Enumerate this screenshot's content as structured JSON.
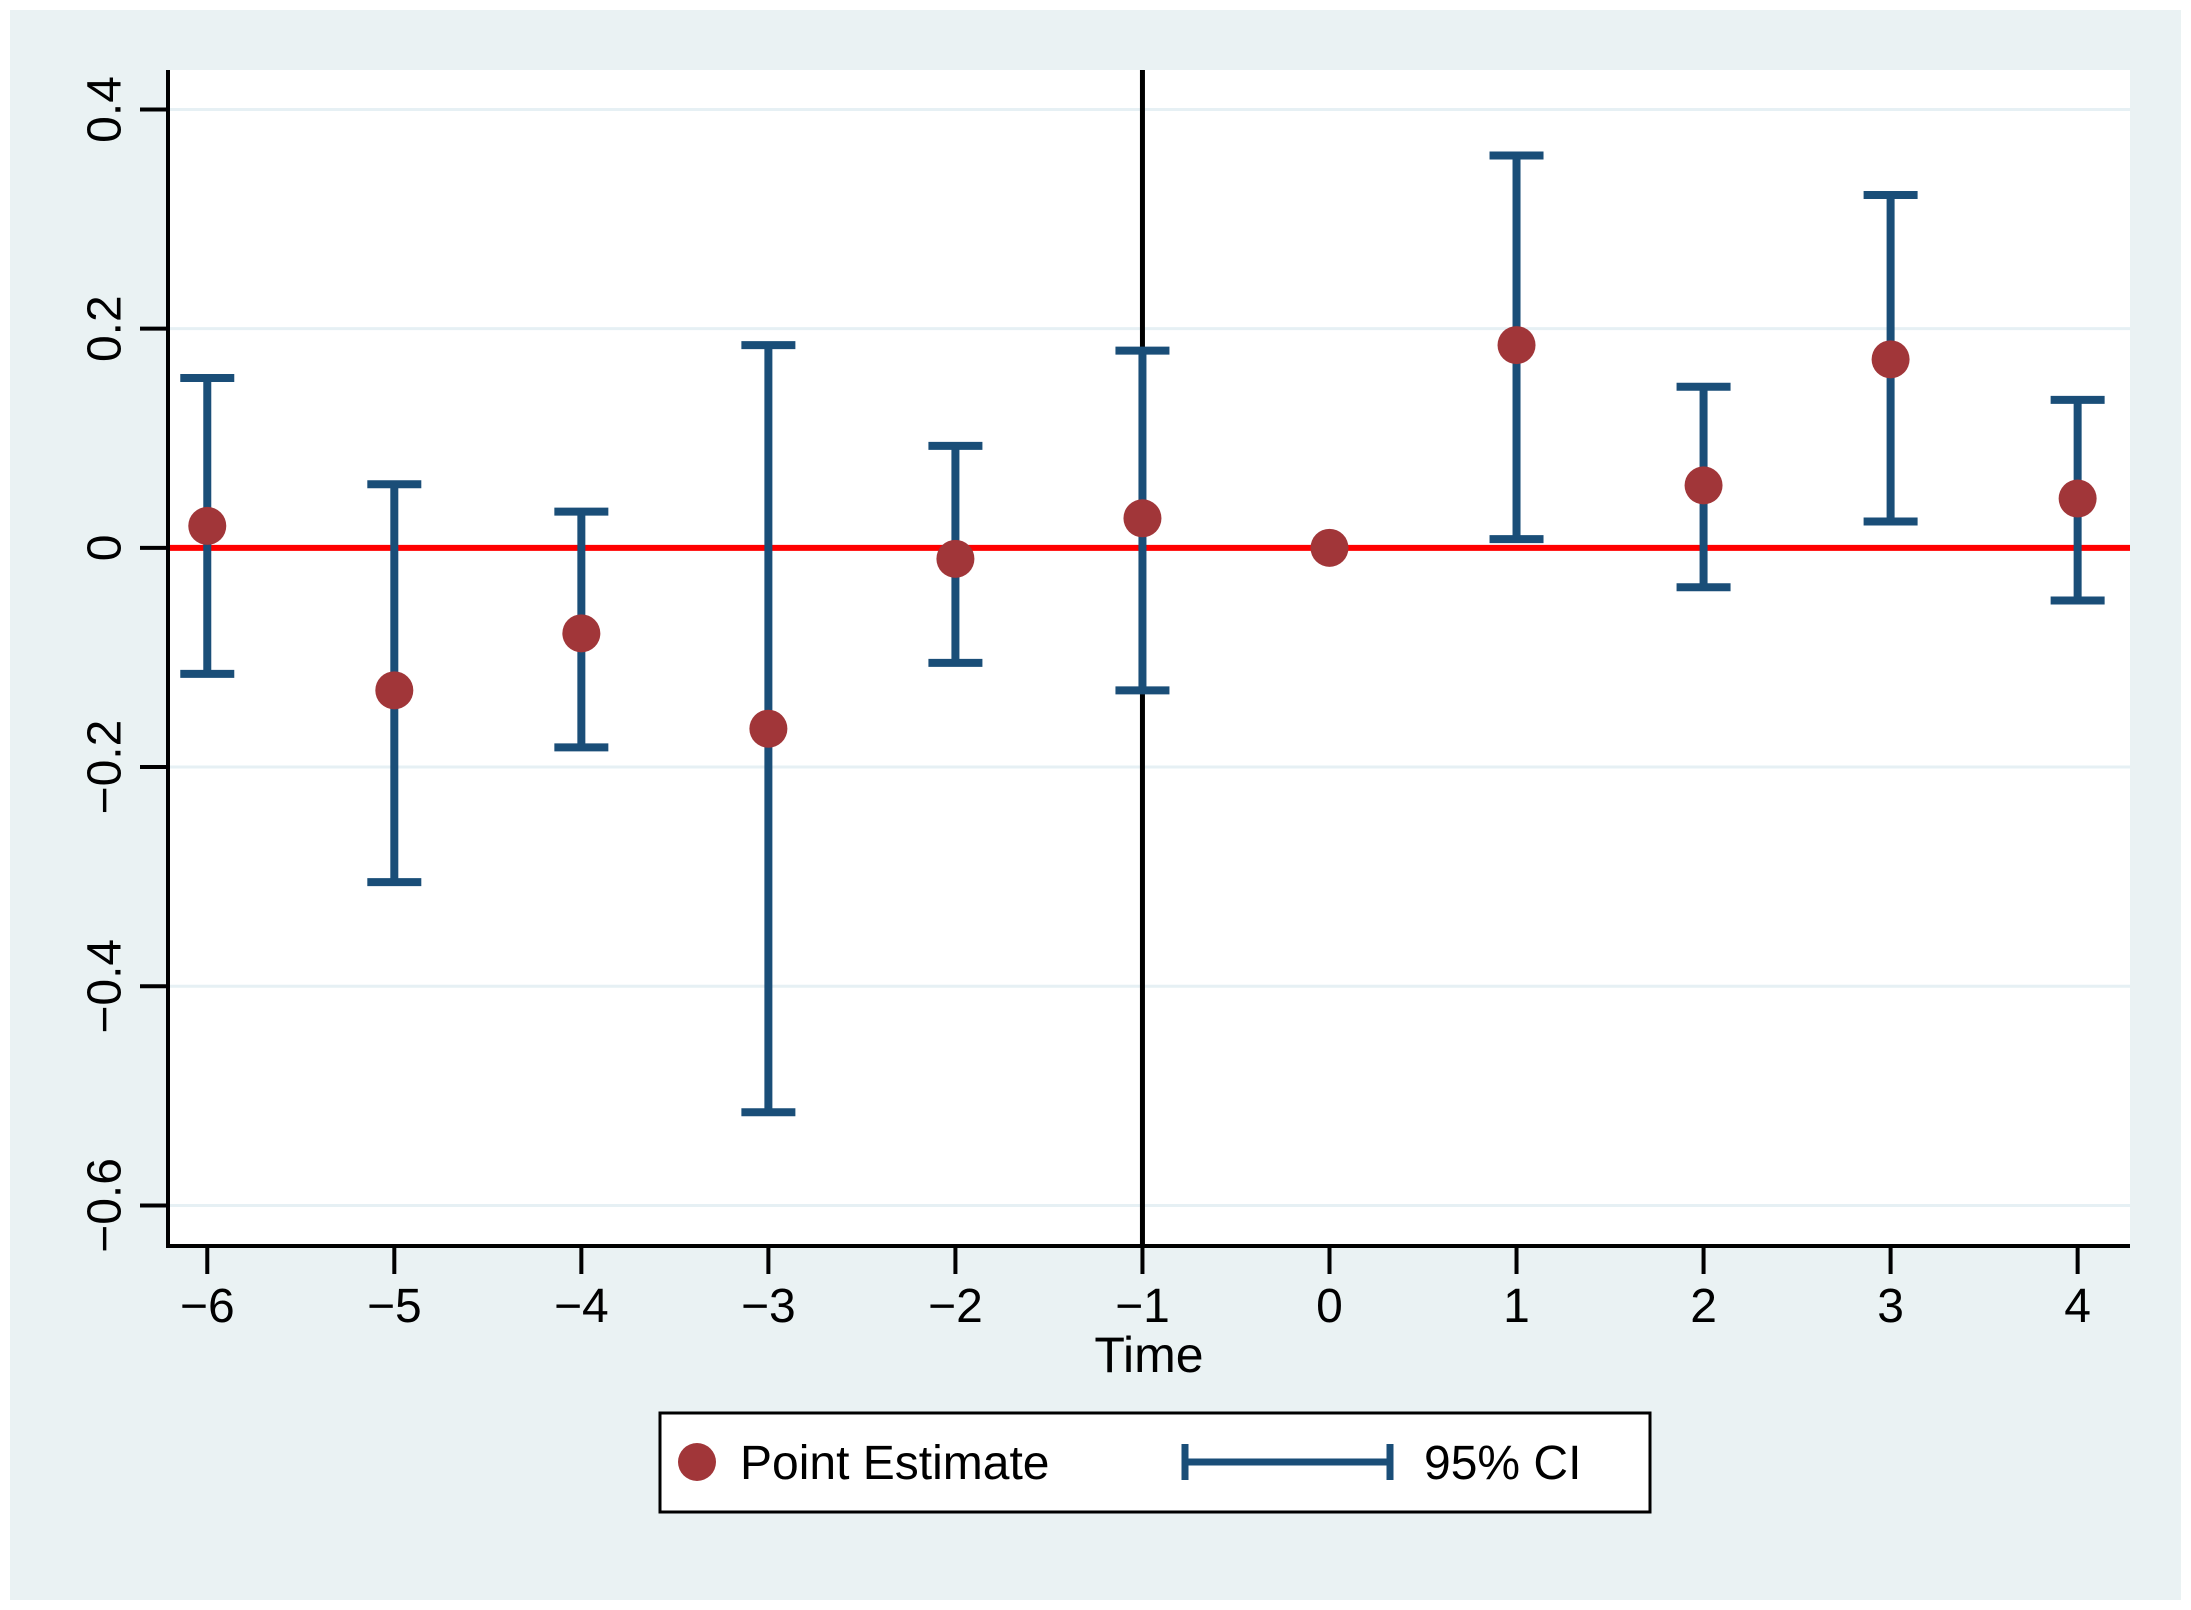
{
  "figure": {
    "canvas_background": "#eaf2f3",
    "plot_background": "#ffffff",
    "outer_border_color": "#ffffff",
    "gridline_color": "#e6f0f4",
    "axis_color": "#000000"
  },
  "chart_data": {
    "type": "scatter",
    "subtype": "event-study-errorbar",
    "title": "",
    "xlabel": "Time",
    "ylabel": "",
    "xlim": [
      -6.21,
      4.28
    ],
    "ylim": [
      -0.637,
      0.436
    ],
    "grid": true,
    "x_ticks": [
      -6,
      -5,
      -4,
      -3,
      -2,
      -1,
      0,
      1,
      2,
      3,
      4
    ],
    "x_tick_labels": [
      "−6",
      "−5",
      "−4",
      "−3",
      "−2",
      "−1",
      "0",
      "1",
      "2",
      "3",
      "4"
    ],
    "y_ticks": [
      0.4,
      0.2,
      0,
      -0.2,
      -0.4,
      -0.6
    ],
    "y_tick_labels": [
      "0.4",
      "0.2",
      "0",
      "−0.2",
      "−0.4",
      "−0.6"
    ],
    "reference_lines": {
      "horizontal_y": 0,
      "horizontal_color": "#ff0000",
      "vertical_x": -1,
      "vertical_color": "#000000"
    },
    "series": [
      {
        "name": "Point Estimate",
        "type": "scatter",
        "marker": "circle",
        "color": "#a13639",
        "x": [
          -6,
          -5,
          -4,
          -3,
          -2,
          -1,
          0,
          1,
          2,
          3,
          4
        ],
        "y": [
          0.02,
          -0.13,
          -0.078,
          -0.165,
          -0.01,
          0.027,
          0.0,
          0.185,
          0.057,
          0.172,
          0.045
        ]
      },
      {
        "name": "95% CI",
        "type": "errorbar",
        "color": "#1a4e78",
        "x": [
          -6,
          -5,
          -4,
          -3,
          -2,
          -1,
          1,
          2,
          3,
          4
        ],
        "low": [
          -0.115,
          -0.305,
          -0.182,
          -0.515,
          -0.105,
          -0.13,
          0.008,
          -0.036,
          0.024,
          -0.048
        ],
        "high": [
          0.155,
          0.058,
          0.033,
          0.185,
          0.093,
          0.18,
          0.358,
          0.147,
          0.322,
          0.135
        ]
      }
    ],
    "legend": {
      "position": "bottom-center",
      "border_color": "#000000",
      "background": "#ffffff",
      "entries": [
        {
          "label": "Point Estimate",
          "swatch": "circle",
          "color": "#a13639"
        },
        {
          "label": "95% CI",
          "swatch": "errorbar-line",
          "color": "#1a4e78"
        }
      ]
    }
  },
  "axis": {
    "x_label": "Time"
  },
  "legend_text": {
    "point_estimate": "Point Estimate",
    "ci": "95% CI"
  }
}
